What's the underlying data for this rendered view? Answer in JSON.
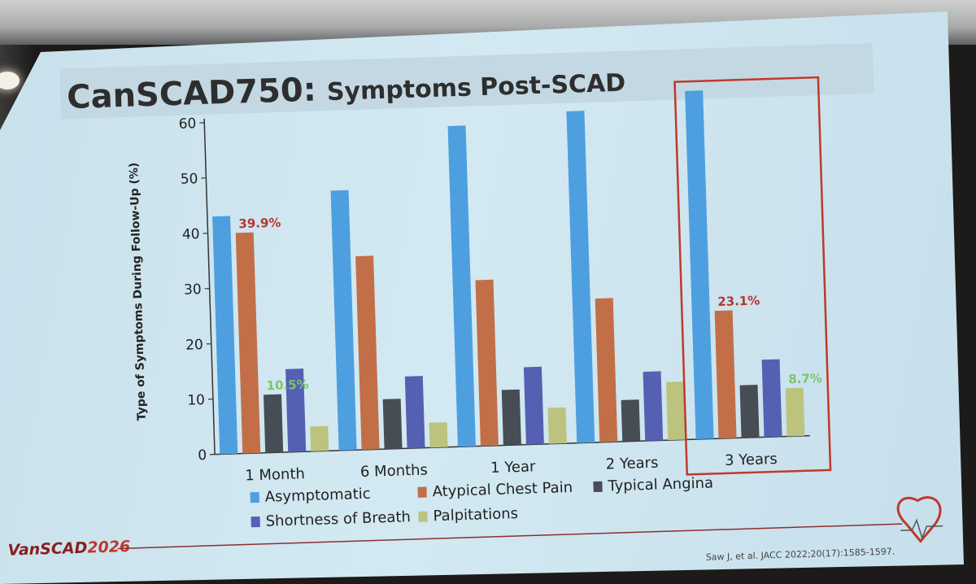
{
  "slide": {
    "title_bold": "CanSCAD750:",
    "title_rest": "Symptoms Post-SCAD",
    "footer_brand_a": "VanSCAD",
    "footer_brand_b": "2026",
    "citation": "Saw J, et al. JACC 2022;20(17):1585-1597."
  },
  "colors": {
    "Asymptomatic": "#4e9fe0",
    "Atypical Chest Pain": "#c26f48",
    "Typical Angina": "#474d55",
    "Shortness of Breath": "#5560b3",
    "Palpitations": "#bcc37e",
    "highlight_red": "#c0392b",
    "annotation_green": "#7dc46a",
    "annotation_red": "#b7342a"
  },
  "chart_data": {
    "type": "bar",
    "ylabel": "Type of Symptoms During Follow-Up (%)",
    "xlabel": "",
    "ylim": [
      0,
      60
    ],
    "yticks": [
      0,
      10,
      20,
      30,
      40,
      50,
      60
    ],
    "grid": false,
    "legend_position": "bottom",
    "categories": [
      "1 Month",
      "6 Months",
      "1 Year",
      "2 Years",
      "3 Years"
    ],
    "series": [
      {
        "name": "Asymptomatic",
        "values": [
          43,
          47,
          58,
          60,
          63
        ]
      },
      {
        "name": "Atypical Chest Pain",
        "values": [
          39.9,
          35,
          30,
          26,
          23.1
        ]
      },
      {
        "name": "Typical Angina",
        "values": [
          10.5,
          9,
          10,
          7.5,
          9.5
        ]
      },
      {
        "name": "Shortness of Breath",
        "values": [
          15,
          13,
          14,
          12.5,
          14
        ]
      },
      {
        "name": "Palpitations",
        "values": [
          4.5,
          4.5,
          6.5,
          10.5,
          8.7
        ]
      }
    ],
    "annotations": [
      {
        "text": "39.9%",
        "category": "1 Month",
        "series": "Atypical Chest Pain",
        "color": "red"
      },
      {
        "text": "10.5%",
        "category": "1 Month",
        "series": "Typical Angina",
        "color": "green"
      },
      {
        "text": "23.1%",
        "category": "3 Years",
        "series": "Atypical Chest Pain",
        "color": "red"
      },
      {
        "text": "8.7%",
        "category": "3 Years",
        "series": "Palpitations",
        "color": "green"
      }
    ],
    "highlight_category": "3 Years"
  }
}
